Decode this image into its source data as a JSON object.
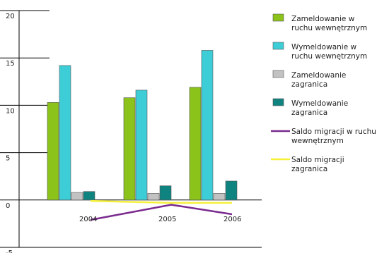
{
  "chart_data": {
    "type": "bar",
    "categories": [
      "2004",
      "2005",
      "2006"
    ],
    "ylim": [
      -5,
      20
    ],
    "yticks": [
      "20",
      "15",
      "10",
      "5",
      "0",
      "-5"
    ],
    "ytick_values": [
      20,
      15,
      10,
      5,
      0,
      -5
    ],
    "grid": false,
    "legend_position": "right",
    "series": [
      {
        "name": "Zameldowanie w ruchu wewnętrznym",
        "kind": "bar",
        "color": "#8bc31a",
        "values": [
          10.3,
          10.8,
          11.9
        ]
      },
      {
        "name": "Wymeldowanie w ruchu wewnętrznym",
        "kind": "bar",
        "color": "#3ccdd6",
        "values": [
          14.2,
          11.6,
          15.8
        ]
      },
      {
        "name": "Zameldowanie zagranica",
        "kind": "bar",
        "color": "#c2c2c2",
        "values": [
          0.8,
          0.7,
          0.7
        ]
      },
      {
        "name": "Wymeldowanie zagranica",
        "kind": "bar",
        "color": "#0f8380",
        "values": [
          0.9,
          1.5,
          2.0
        ]
      },
      {
        "name": "Saldo migracji w ruchu wewnętrznym",
        "kind": "line",
        "color": "#7a2a8e",
        "values": [
          -2.1,
          -0.5,
          -1.5
        ]
      },
      {
        "name": "Saldo migracji zagranica",
        "kind": "line",
        "color": "#f5f03a",
        "values": [
          -0.1,
          -0.3,
          -0.3
        ]
      }
    ],
    "legend_lines": [
      [
        "Zameldowanie w",
        "ruchu wewnętrznym"
      ],
      [
        "Wymeldowanie w",
        "ruchu wewnętrznym"
      ],
      [
        "Zameldowanie",
        "zagranica"
      ],
      [
        "Wymeldowanie",
        "zagranica"
      ],
      [
        "Saldo migracji w ruchu",
        "wewnętrznym"
      ],
      [
        "Saldo migracji",
        "zagranica"
      ]
    ]
  }
}
